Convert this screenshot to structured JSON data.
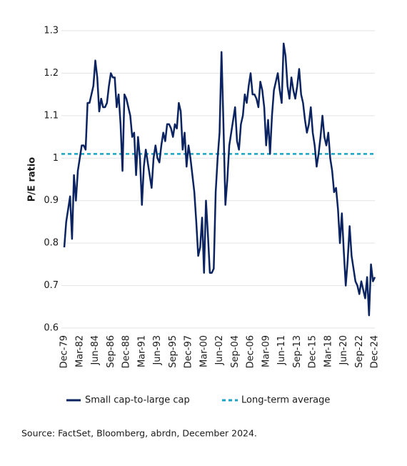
{
  "chart_data": {
    "type": "line",
    "y_label": "P/E ratio",
    "source": "Source: FactSet, Bloomberg, abrdn, December 2024.",
    "categories": [
      "Dec-79",
      null,
      null,
      null,
      null,
      null,
      null,
      null,
      "Mar-82",
      null,
      null,
      null,
      null,
      null,
      null,
      null,
      "Jun-84",
      null,
      null,
      null,
      null,
      null,
      null,
      null,
      "Sep-86",
      null,
      null,
      null,
      null,
      null,
      null,
      null,
      "Dec-88",
      null,
      null,
      null,
      null,
      null,
      null,
      null,
      "Mar-91",
      null,
      null,
      null,
      null,
      null,
      null,
      null,
      "Jun-93",
      null,
      null,
      null,
      null,
      null,
      null,
      null,
      "Sep-95",
      null,
      null,
      null,
      null,
      null,
      null,
      null,
      "Dec-97",
      null,
      null,
      null,
      null,
      null,
      null,
      null,
      "Mar-00",
      null,
      null,
      null,
      null,
      null,
      null,
      null,
      "Jun-02",
      null,
      null,
      null,
      null,
      null,
      null,
      null,
      "Sep-04",
      null,
      null,
      null,
      null,
      null,
      null,
      null,
      "Dec-06",
      null,
      null,
      null,
      null,
      null,
      null,
      null,
      "Mar-09",
      null,
      null,
      null,
      null,
      null,
      null,
      null,
      "Jun-11",
      null,
      null,
      null,
      null,
      null,
      null,
      null,
      "Sep-13",
      null,
      null,
      null,
      null,
      null,
      null,
      null,
      "Dec-15",
      null,
      null,
      null,
      null,
      null,
      null,
      null,
      "Mar-18",
      null,
      null,
      null,
      null,
      null,
      null,
      null,
      "Jun-20",
      null,
      null,
      null,
      null,
      null,
      null,
      null,
      "Sep-22",
      null,
      null,
      null,
      null,
      null,
      null,
      null,
      "Dec-24"
    ],
    "series": [
      {
        "name": "Small cap-to-large cap",
        "color": "#0b2461",
        "values": [
          0.79,
          0.85,
          0.88,
          0.91,
          0.81,
          0.96,
          0.9,
          0.97,
          1.0,
          1.03,
          1.03,
          1.02,
          1.13,
          1.13,
          1.15,
          1.17,
          1.23,
          1.19,
          1.11,
          1.14,
          1.12,
          1.12,
          1.13,
          1.17,
          1.2,
          1.19,
          1.19,
          1.12,
          1.15,
          1.08,
          0.97,
          1.15,
          1.14,
          1.12,
          1.1,
          1.05,
          1.06,
          0.96,
          1.05,
          1.0,
          0.89,
          0.98,
          1.02,
          0.99,
          0.96,
          0.93,
          1.0,
          1.03,
          1.0,
          0.99,
          1.03,
          1.06,
          1.04,
          1.08,
          1.08,
          1.07,
          1.05,
          1.08,
          1.07,
          1.13,
          1.11,
          1.02,
          1.06,
          0.98,
          1.03,
          1.0,
          0.96,
          0.92,
          0.85,
          0.77,
          0.79,
          0.86,
          0.73,
          0.9,
          0.82,
          0.73,
          0.73,
          0.74,
          0.92,
          1.0,
          1.06,
          1.25,
          1.08,
          0.89,
          0.95,
          1.03,
          1.06,
          1.09,
          1.12,
          1.04,
          1.02,
          1.08,
          1.1,
          1.15,
          1.13,
          1.17,
          1.2,
          1.15,
          1.15,
          1.14,
          1.12,
          1.18,
          1.16,
          1.12,
          1.03,
          1.09,
          1.01,
          1.1,
          1.16,
          1.18,
          1.2,
          1.16,
          1.13,
          1.27,
          1.24,
          1.17,
          1.14,
          1.19,
          1.16,
          1.14,
          1.17,
          1.21,
          1.15,
          1.13,
          1.09,
          1.06,
          1.08,
          1.12,
          1.06,
          1.03,
          0.98,
          1.01,
          1.05,
          1.1,
          1.05,
          1.03,
          1.06,
          1.0,
          0.97,
          0.92,
          0.93,
          0.88,
          0.8,
          0.87,
          0.78,
          0.7,
          0.76,
          0.84,
          0.77,
          0.74,
          0.71,
          0.7,
          0.68,
          0.71,
          0.69,
          0.67,
          0.72,
          0.63,
          0.75,
          0.71,
          0.72
        ]
      }
    ],
    "average": {
      "name": "Long-term average",
      "value": 1.01,
      "color": "#1aa3c8"
    },
    "ylim": [
      0.6,
      1.3
    ],
    "yticks": [
      0.6,
      0.7,
      0.8,
      0.9,
      1,
      1.1,
      1.2,
      1.3
    ],
    "grid": true
  }
}
